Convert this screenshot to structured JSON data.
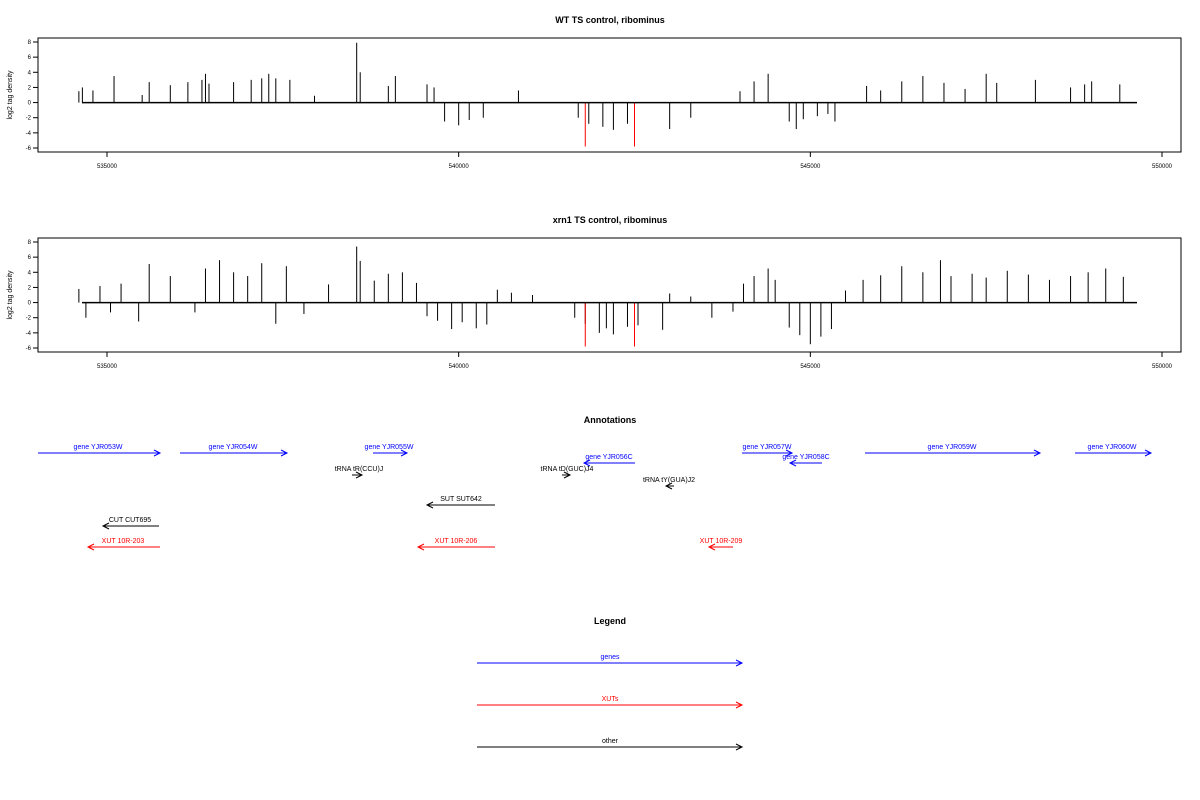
{
  "chart_data": [
    {
      "type": "bar",
      "title": "WT TS control, ribominus",
      "ylabel": "log2 tag density",
      "xlim": [
        534500,
        549600
      ],
      "ylim": [
        -6,
        8
      ],
      "x_ticks": [
        535000,
        540000,
        545000,
        550000
      ],
      "y_ticks": [
        8,
        6,
        4,
        2,
        0,
        -2,
        -4,
        -6
      ],
      "series": [
        {
          "color": "#000000",
          "points": [
            [
              534600,
              1.5
            ],
            [
              534650,
              2.0
            ],
            [
              534800,
              1.6
            ],
            [
              535100,
              3.5
            ],
            [
              535500,
              1.0
            ],
            [
              535600,
              2.7
            ],
            [
              535900,
              2.3
            ],
            [
              536150,
              2.7
            ],
            [
              536350,
              3.0
            ],
            [
              536400,
              3.8
            ],
            [
              536450,
              2.5
            ],
            [
              536800,
              2.7
            ],
            [
              537050,
              3.0
            ],
            [
              537200,
              3.2
            ],
            [
              537300,
              3.8
            ],
            [
              537400,
              3.2
            ],
            [
              537600,
              3.0
            ],
            [
              537950,
              0.9
            ],
            [
              538550,
              7.9
            ],
            [
              538600,
              4.0
            ],
            [
              539000,
              2.2
            ],
            [
              539100,
              3.5
            ],
            [
              539550,
              2.4
            ],
            [
              539650,
              2.0
            ],
            [
              539800,
              -2.5
            ],
            [
              540000,
              -3.0
            ],
            [
              540150,
              -2.3
            ],
            [
              540350,
              -2.0
            ],
            [
              540850,
              1.6
            ],
            [
              541700,
              -2.0
            ],
            [
              541850,
              -2.8
            ],
            [
              542050,
              -3.2
            ],
            [
              542200,
              -3.6
            ],
            [
              542400,
              -2.8
            ],
            [
              542500,
              -3.0
            ],
            [
              543000,
              -3.5
            ],
            [
              543300,
              -2.0
            ],
            [
              544000,
              1.5
            ],
            [
              544200,
              2.8
            ],
            [
              544400,
              3.8
            ],
            [
              544700,
              -2.5
            ],
            [
              544800,
              -3.5
            ],
            [
              544900,
              -2.2
            ],
            [
              545100,
              -1.8
            ],
            [
              545250,
              -1.5
            ],
            [
              545350,
              -2.5
            ],
            [
              545800,
              2.2
            ],
            [
              546000,
              1.6
            ],
            [
              546300,
              2.8
            ],
            [
              546600,
              3.5
            ],
            [
              546900,
              2.6
            ],
            [
              547200,
              1.8
            ],
            [
              547500,
              3.8
            ],
            [
              547650,
              2.6
            ],
            [
              548200,
              3.0
            ],
            [
              548700,
              2.0
            ],
            [
              548900,
              2.4
            ],
            [
              549000,
              2.8
            ],
            [
              549400,
              2.4
            ]
          ]
        },
        {
          "color": "#ff0000",
          "points": [
            [
              541800,
              -5.8
            ],
            [
              542500,
              -5.8
            ]
          ]
        }
      ]
    },
    {
      "type": "bar",
      "title": "xrn1 TS control, ribominus",
      "ylabel": "log2 tag density",
      "xlim": [
        534500,
        549600
      ],
      "ylim": [
        -6,
        8
      ],
      "x_ticks": [
        535000,
        540000,
        545000,
        550000
      ],
      "y_ticks": [
        8,
        6,
        4,
        2,
        0,
        -2,
        -4,
        -6
      ],
      "series": [
        {
          "color": "#000000",
          "points": [
            [
              534600,
              1.8
            ],
            [
              534700,
              -2.0
            ],
            [
              534900,
              2.2
            ],
            [
              535050,
              -1.3
            ],
            [
              535200,
              2.5
            ],
            [
              535450,
              -2.5
            ],
            [
              535600,
              5.1
            ],
            [
              535900,
              3.5
            ],
            [
              536250,
              -1.3
            ],
            [
              536400,
              4.5
            ],
            [
              536600,
              5.6
            ],
            [
              536800,
              4.0
            ],
            [
              537000,
              3.5
            ],
            [
              537200,
              5.2
            ],
            [
              537400,
              -2.8
            ],
            [
              537550,
              4.8
            ],
            [
              537800,
              -1.5
            ],
            [
              538150,
              2.4
            ],
            [
              538550,
              7.4
            ],
            [
              538600,
              5.5
            ],
            [
              538800,
              2.9
            ],
            [
              539000,
              3.8
            ],
            [
              539200,
              4.0
            ],
            [
              539400,
              2.6
            ],
            [
              539550,
              -1.8
            ],
            [
              539700,
              -2.4
            ],
            [
              539900,
              -3.5
            ],
            [
              540050,
              -2.6
            ],
            [
              540250,
              -3.4
            ],
            [
              540400,
              -2.9
            ],
            [
              540550,
              1.7
            ],
            [
              540750,
              1.3
            ],
            [
              541050,
              1.0
            ],
            [
              541650,
              -2.0
            ],
            [
              541800,
              -2.8
            ],
            [
              542000,
              -4.0
            ],
            [
              542100,
              -3.4
            ],
            [
              542200,
              -4.2
            ],
            [
              542400,
              -3.2
            ],
            [
              542550,
              -3.0
            ],
            [
              542900,
              -3.6
            ],
            [
              543000,
              1.2
            ],
            [
              543300,
              0.8
            ],
            [
              543600,
              -2.0
            ],
            [
              543900,
              -1.2
            ],
            [
              544050,
              2.5
            ],
            [
              544200,
              3.5
            ],
            [
              544400,
              4.5
            ],
            [
              544500,
              3.0
            ],
            [
              544700,
              -3.3
            ],
            [
              544850,
              -4.3
            ],
            [
              545000,
              -5.5
            ],
            [
              545150,
              -4.5
            ],
            [
              545300,
              -3.5
            ],
            [
              545500,
              1.6
            ],
            [
              545750,
              3.0
            ],
            [
              546000,
              3.6
            ],
            [
              546300,
              4.8
            ],
            [
              546600,
              4.0
            ],
            [
              546850,
              5.6
            ],
            [
              547000,
              3.5
            ],
            [
              547300,
              3.8
            ],
            [
              547500,
              3.3
            ],
            [
              547800,
              4.2
            ],
            [
              548100,
              3.7
            ],
            [
              548400,
              3.0
            ],
            [
              548700,
              3.5
            ],
            [
              548950,
              4.0
            ],
            [
              549200,
              4.5
            ],
            [
              549450,
              3.4
            ]
          ]
        },
        {
          "color": "#ff0000",
          "points": [
            [
              541800,
              -5.8
            ],
            [
              542500,
              -5.8
            ]
          ]
        }
      ]
    }
  ],
  "annotations": {
    "title": "Annotations",
    "genes": [
      {
        "label": "gene YJR053W",
        "strand": "+"
      },
      {
        "label": "gene YJR054W",
        "strand": "+"
      },
      {
        "label": "gene YJR055W",
        "strand": "+"
      },
      {
        "label": "gene YJR056C",
        "strand": "-"
      },
      {
        "label": "gene YJR057W",
        "strand": "+"
      },
      {
        "label": "gene YJR058C",
        "strand": "-"
      },
      {
        "label": "gene YJR059W",
        "strand": "+"
      },
      {
        "label": "gene YJR060W",
        "strand": "+"
      }
    ],
    "others": [
      {
        "label": "tRNA tR(CCU)J",
        "strand": "+"
      },
      {
        "label": "tRNA tD(GUC)J4",
        "strand": "+"
      },
      {
        "label": "tRNA tY(GUA)J2",
        "strand": "-"
      },
      {
        "label": "SUT SUT642",
        "strand": "-"
      },
      {
        "label": "CUT CUT695",
        "strand": "-"
      }
    ],
    "xuts": [
      {
        "label": "XUT 10R-203",
        "strand": "-"
      },
      {
        "label": "XUT 10R-206",
        "strand": "-"
      },
      {
        "label": "XUT 10R-209",
        "strand": "-"
      }
    ]
  },
  "legend": {
    "title": "Legend",
    "items": [
      {
        "label": "genes",
        "color": "#0000ff"
      },
      {
        "label": "XUTs",
        "color": "#ff0000"
      },
      {
        "label": "other",
        "color": "#000000"
      }
    ]
  },
  "colors": {
    "gene": "#0000ff",
    "xut": "#ff0000",
    "other": "#000000"
  }
}
